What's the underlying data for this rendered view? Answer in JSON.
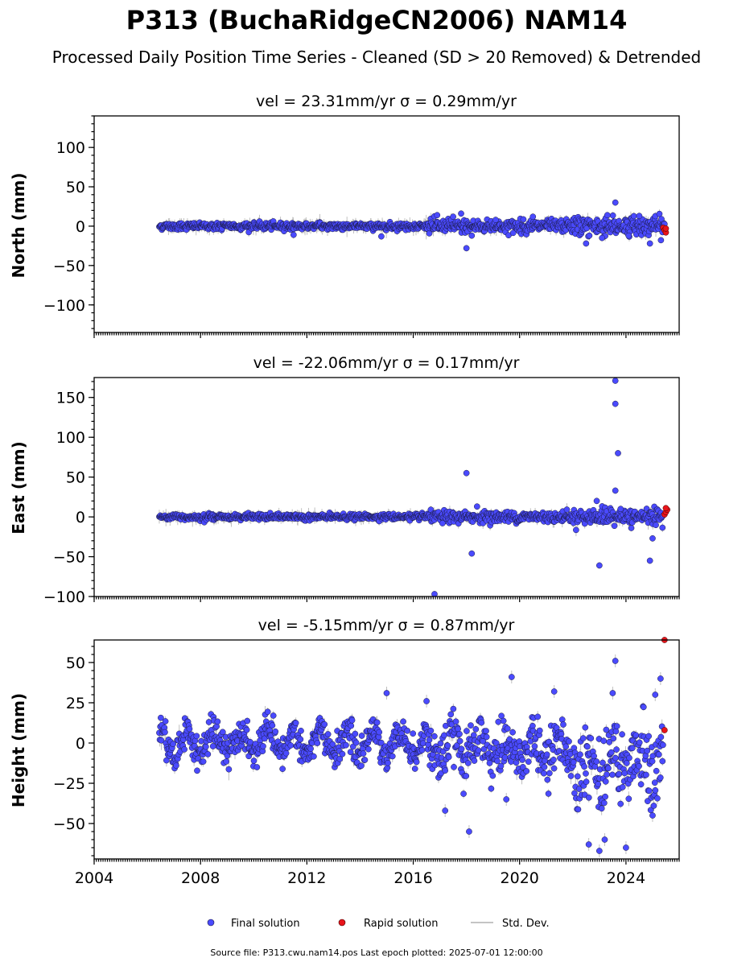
{
  "figure": {
    "title": "P313 (BuchaRidgeCN2006) NAM14",
    "subtitle": "Processed Daily Position Time Series - Cleaned (SD > 20 Removed) & Detrended",
    "footer": "Source file: P313.cwu.nam14.pos  Last epoch plotted: 2025-07-01 12:00:00"
  },
  "colors": {
    "final": "#4a4aff",
    "rapid": "#e8141a",
    "stddev": "#b0b0b0",
    "marker_edge": "#1a1a40"
  },
  "legend": {
    "final_label": "Final solution",
    "rapid_label": "Rapid solution",
    "stddev_label": "Std. Dev."
  },
  "chart_data": [
    {
      "type": "scatter",
      "panel": "north",
      "title": "vel = 23.31mm/yr   σ = 0.29mm/yr",
      "ylabel": "North (mm)",
      "ylim": [
        -135,
        140
      ],
      "xlim": [
        2004,
        2026
      ],
      "yticks": [
        -100,
        -50,
        0,
        50,
        100
      ],
      "ytick_labels": [
        "−100",
        "−50",
        "0",
        "50",
        "100"
      ],
      "final_range": [
        2006.45,
        2025.45
      ],
      "noise_sd": 2.2,
      "sd_scale": 3.5,
      "outliers": [
        [
          2011.5,
          -11
        ],
        [
          2014.8,
          -13
        ],
        [
          2016.9,
          14
        ],
        [
          2017.5,
          12
        ],
        [
          2017.8,
          16
        ],
        [
          2018.0,
          -28
        ],
        [
          2018.2,
          -12
        ],
        [
          2019.1,
          8
        ],
        [
          2020.5,
          12
        ],
        [
          2022.5,
          -22
        ],
        [
          2023.1,
          -15
        ],
        [
          2023.6,
          30
        ],
        [
          2024.1,
          -12
        ],
        [
          2024.9,
          -22
        ],
        [
          2023.3,
          14
        ],
        [
          2024.5,
          13
        ]
      ],
      "rapid": [
        [
          2025.4,
          -2
        ],
        [
          2025.45,
          -5
        ],
        [
          2025.5,
          -8
        ],
        [
          2025.5,
          -3
        ]
      ]
    },
    {
      "type": "scatter",
      "panel": "east",
      "title": "vel = -22.06mm/yr   σ = 0.17mm/yr",
      "ylabel": "East (mm)",
      "ylim": [
        -100,
        175
      ],
      "xlim": [
        2004,
        2026
      ],
      "yticks": [
        -100,
        -50,
        0,
        50,
        100,
        150
      ],
      "ytick_labels": [
        "−100",
        "−50",
        "0",
        "50",
        "100",
        "150"
      ],
      "final_range": [
        2006.45,
        2025.4
      ],
      "noise_sd": 1.8,
      "sd_scale": 3.0,
      "outliers": [
        [
          2016.8,
          -97
        ],
        [
          2018.0,
          55
        ],
        [
          2018.2,
          -46
        ],
        [
          2018.4,
          13
        ],
        [
          2017.1,
          -8
        ],
        [
          2023.0,
          -61
        ],
        [
          2022.9,
          20
        ],
        [
          2023.6,
          171
        ],
        [
          2023.6,
          142
        ],
        [
          2023.6,
          33
        ],
        [
          2023.7,
          80
        ],
        [
          2024.9,
          -55
        ],
        [
          2025.0,
          -27
        ],
        [
          2024.2,
          -14
        ],
        [
          2023.8,
          10
        ]
      ],
      "rapid": [
        [
          2025.45,
          3
        ],
        [
          2025.5,
          6
        ],
        [
          2025.55,
          9
        ],
        [
          2025.5,
          11
        ]
      ]
    },
    {
      "type": "scatter",
      "panel": "height",
      "title": "vel = -5.15mm/yr   σ = 0.87mm/yr",
      "ylabel": "Height (mm)",
      "ylim": [
        -72,
        64
      ],
      "xlim": [
        2004,
        2026
      ],
      "yticks": [
        -50,
        -25,
        0,
        25,
        50
      ],
      "ytick_labels": [
        "−50",
        "−25",
        "0",
        "25",
        "50"
      ],
      "final_range": [
        2006.45,
        2025.4
      ],
      "noise_sd": 5.0,
      "sd_scale": 1.5,
      "seasonal_amp": 7,
      "outliers": [
        [
          2015.0,
          31
        ],
        [
          2016.5,
          26
        ],
        [
          2017.2,
          -42
        ],
        [
          2018.1,
          -55
        ],
        [
          2019.7,
          41
        ],
        [
          2021.3,
          32
        ],
        [
          2023.5,
          31
        ],
        [
          2023.6,
          51
        ],
        [
          2022.6,
          -63
        ],
        [
          2023.0,
          -67
        ],
        [
          2023.2,
          -60
        ],
        [
          2024.0,
          -65
        ],
        [
          2025.0,
          -45
        ],
        [
          2025.1,
          30
        ],
        [
          2025.3,
          40
        ],
        [
          2019.5,
          -35
        ]
      ],
      "rapid": [
        [
          2025.45,
          64
        ],
        [
          2025.45,
          8
        ]
      ]
    }
  ],
  "xaxis": {
    "ticks": [
      2004,
      2008,
      2012,
      2016,
      2020,
      2024
    ],
    "tick_labels": [
      "2004",
      "2008",
      "2012",
      "2016",
      "2020",
      "2024"
    ],
    "minor_per_year": 12
  }
}
